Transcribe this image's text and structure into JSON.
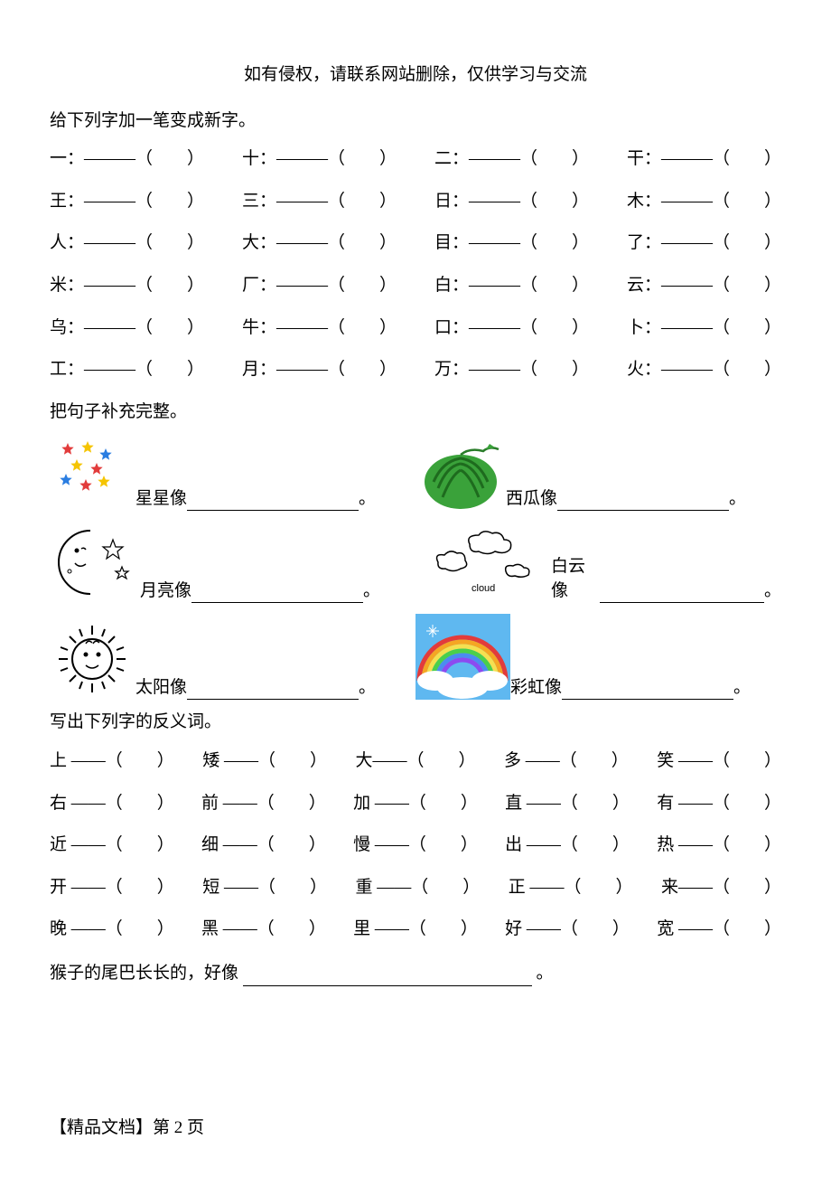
{
  "header_note": "如有侵权，请联系网站删除，仅供学习与交流",
  "section1": {
    "title": "给下列字加一笔变成新字。",
    "rows": [
      [
        "一：———（　　）",
        "十：———（　　）",
        "二：———（　　）",
        "干：———（　　）"
      ],
      [
        "王：———（　　）",
        "三：———（　　）",
        "日：———（　　）",
        "木：———（　　）"
      ],
      [
        "人：———（　　）",
        "大：———（　　）",
        "目：———（　　）",
        "了：———（　　）"
      ],
      [
        "米：———（　　）",
        "厂：———（　　）",
        "白：———（　　）",
        "云：———（　　）"
      ],
      [
        "乌：———（　　）",
        "牛：———（　　）",
        "口：———（　　）",
        "卜：———（　　）"
      ],
      [
        "工：———（　　）",
        "月：———（　　）",
        "万：———（　　）",
        "火：———（　　）"
      ]
    ]
  },
  "section2": {
    "title": "把句子补充完整。",
    "items": [
      {
        "label": "星星像",
        "blank_width": 190,
        "punct": "。"
      },
      {
        "label": "西瓜像",
        "blank_width": 190,
        "punct": "。"
      },
      {
        "label": "月亮像",
        "blank_width": 190,
        "punct": "。"
      },
      {
        "label": "白云像",
        "blank_width": 190,
        "punct": "。"
      },
      {
        "label": "太阳像",
        "blank_width": 190,
        "punct": "。"
      },
      {
        "label": "彩虹像",
        "blank_width": 190,
        "punct": "。"
      }
    ]
  },
  "section3": {
    "title": "写出下列字的反义词。",
    "rows": [
      [
        "上 ——（　　）",
        "矮 ——（　　）",
        "大——（　　）",
        "多 ——（　　）",
        "笑 ——（　　）"
      ],
      [
        "右 ——（　　）",
        "前 ——（　　）",
        "加 ——（　　）",
        "直 ——（　　）",
        "有 ——（　　）"
      ],
      [
        "近 ——（　　）",
        "细 ——（　　）",
        "慢 ——（　　）",
        "出 ——（　　）",
        "热 ——（　　）"
      ],
      [
        "开 ——（　　）",
        "短 ——（　　）",
        "重 ——（　　）",
        "正 ——（　　）",
        "来——（　　）"
      ],
      [
        "晚 ——（　　）",
        "黑 ——（　　）",
        "里 ——（　　）",
        "好 ——（　　）",
        "宽 ——（　　）"
      ]
    ]
  },
  "sentence": {
    "prefix": "猴子的尾巴长长的，好像",
    "blank_width": 320,
    "punct": "。"
  },
  "footer": "【精品文档】第 2 页",
  "icons": {
    "cloud_caption": "cloud",
    "stars": {
      "colors": [
        "#e23b3b",
        "#f5c400",
        "#2a7de1",
        "#f5c400",
        "#e23b3b",
        "#2a7de1",
        "#e23b3b",
        "#f5c400"
      ]
    },
    "watermelon": {
      "body": "#3aa23a",
      "dark": "#1e6b1e",
      "flesh": "#d94242"
    },
    "rainbow": {
      "sky": "#5fb8f0",
      "colors": [
        "#e23b3b",
        "#f5a623",
        "#f5e050",
        "#4bcf4b",
        "#4b8cf0",
        "#8c4bf0"
      ]
    }
  }
}
